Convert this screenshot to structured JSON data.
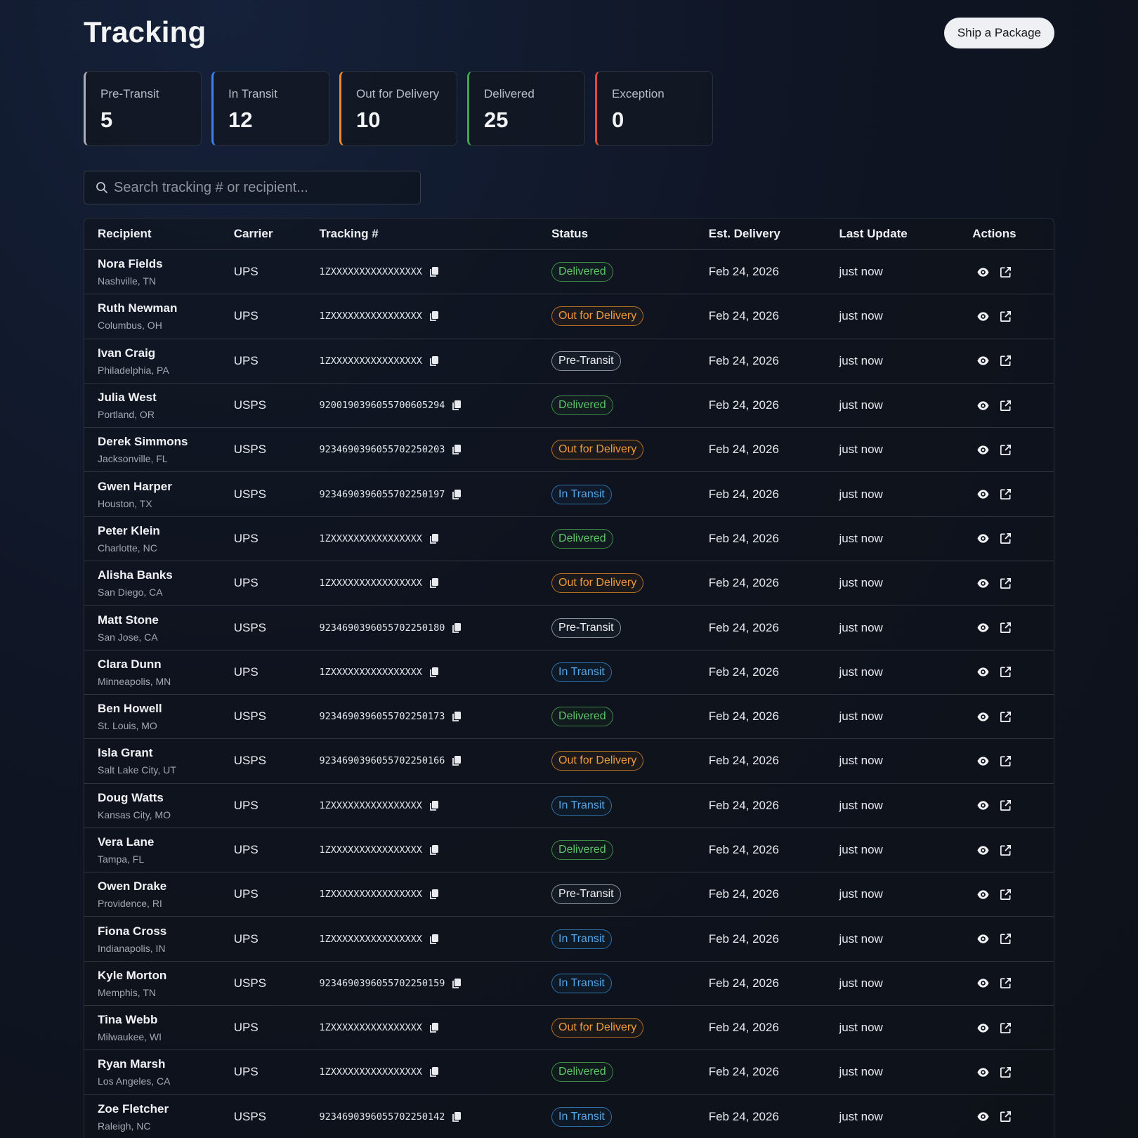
{
  "header": {
    "title": "Tracking",
    "ship_button": "Ship a Package"
  },
  "stats": [
    {
      "label": "Pre-Transit",
      "value": "5",
      "color": "#a8adb6"
    },
    {
      "label": "In Transit",
      "value": "12",
      "color": "#3b82f6"
    },
    {
      "label": "Out for Delivery",
      "value": "10",
      "color": "#f08a2c"
    },
    {
      "label": "Delivered",
      "value": "25",
      "color": "#3fa64a"
    },
    {
      "label": "Exception",
      "value": "0",
      "color": "#e0463c"
    }
  ],
  "search": {
    "placeholder": "Search tracking # or recipient..."
  },
  "table": {
    "columns": [
      "Recipient",
      "Carrier",
      "Tracking #",
      "Status",
      "Est. Delivery",
      "Last Update",
      "Actions"
    ],
    "rows": [
      {
        "name": "Nora Fields",
        "location": "Nashville, TN",
        "carrier": "UPS",
        "tracking": "1ZXXXXXXXXXXXXXXXX",
        "status": "Delivered",
        "eta": "Feb 24, 2026",
        "updated": "just now"
      },
      {
        "name": "Ruth Newman",
        "location": "Columbus, OH",
        "carrier": "UPS",
        "tracking": "1ZXXXXXXXXXXXXXXXX",
        "status": "Out for Delivery",
        "eta": "Feb 24, 2026",
        "updated": "just now"
      },
      {
        "name": "Ivan Craig",
        "location": "Philadelphia, PA",
        "carrier": "UPS",
        "tracking": "1ZXXXXXXXXXXXXXXXX",
        "status": "Pre-Transit",
        "eta": "Feb 24, 2026",
        "updated": "just now"
      },
      {
        "name": "Julia West",
        "location": "Portland, OR",
        "carrier": "USPS",
        "tracking": "9200190396055700605294",
        "status": "Delivered",
        "eta": "Feb 24, 2026",
        "updated": "just now"
      },
      {
        "name": "Derek Simmons",
        "location": "Jacksonville, FL",
        "carrier": "USPS",
        "tracking": "9234690396055702250203",
        "status": "Out for Delivery",
        "eta": "Feb 24, 2026",
        "updated": "just now"
      },
      {
        "name": "Gwen Harper",
        "location": "Houston, TX",
        "carrier": "USPS",
        "tracking": "9234690396055702250197",
        "status": "In Transit",
        "eta": "Feb 24, 2026",
        "updated": "just now"
      },
      {
        "name": "Peter Klein",
        "location": "Charlotte, NC",
        "carrier": "UPS",
        "tracking": "1ZXXXXXXXXXXXXXXXX",
        "status": "Delivered",
        "eta": "Feb 24, 2026",
        "updated": "just now"
      },
      {
        "name": "Alisha Banks",
        "location": "San Diego, CA",
        "carrier": "UPS",
        "tracking": "1ZXXXXXXXXXXXXXXXX",
        "status": "Out for Delivery",
        "eta": "Feb 24, 2026",
        "updated": "just now"
      },
      {
        "name": "Matt Stone",
        "location": "San Jose, CA",
        "carrier": "USPS",
        "tracking": "9234690396055702250180",
        "status": "Pre-Transit",
        "eta": "Feb 24, 2026",
        "updated": "just now"
      },
      {
        "name": "Clara Dunn",
        "location": "Minneapolis, MN",
        "carrier": "UPS",
        "tracking": "1ZXXXXXXXXXXXXXXXX",
        "status": "In Transit",
        "eta": "Feb 24, 2026",
        "updated": "just now"
      },
      {
        "name": "Ben Howell",
        "location": "St. Louis, MO",
        "carrier": "USPS",
        "tracking": "9234690396055702250173",
        "status": "Delivered",
        "eta": "Feb 24, 2026",
        "updated": "just now"
      },
      {
        "name": "Isla Grant",
        "location": "Salt Lake City, UT",
        "carrier": "USPS",
        "tracking": "9234690396055702250166",
        "status": "Out for Delivery",
        "eta": "Feb 24, 2026",
        "updated": "just now"
      },
      {
        "name": "Doug Watts",
        "location": "Kansas City, MO",
        "carrier": "UPS",
        "tracking": "1ZXXXXXXXXXXXXXXXX",
        "status": "In Transit",
        "eta": "Feb 24, 2026",
        "updated": "just now"
      },
      {
        "name": "Vera Lane",
        "location": "Tampa, FL",
        "carrier": "UPS",
        "tracking": "1ZXXXXXXXXXXXXXXXX",
        "status": "Delivered",
        "eta": "Feb 24, 2026",
        "updated": "just now"
      },
      {
        "name": "Owen Drake",
        "location": "Providence, RI",
        "carrier": "UPS",
        "tracking": "1ZXXXXXXXXXXXXXXXX",
        "status": "Pre-Transit",
        "eta": "Feb 24, 2026",
        "updated": "just now"
      },
      {
        "name": "Fiona Cross",
        "location": "Indianapolis, IN",
        "carrier": "UPS",
        "tracking": "1ZXXXXXXXXXXXXXXXX",
        "status": "In Transit",
        "eta": "Feb 24, 2026",
        "updated": "just now"
      },
      {
        "name": "Kyle Morton",
        "location": "Memphis, TN",
        "carrier": "USPS",
        "tracking": "9234690396055702250159",
        "status": "In Transit",
        "eta": "Feb 24, 2026",
        "updated": "just now"
      },
      {
        "name": "Tina Webb",
        "location": "Milwaukee, WI",
        "carrier": "UPS",
        "tracking": "1ZXXXXXXXXXXXXXXXX",
        "status": "Out for Delivery",
        "eta": "Feb 24, 2026",
        "updated": "just now"
      },
      {
        "name": "Ryan Marsh",
        "location": "Los Angeles, CA",
        "carrier": "UPS",
        "tracking": "1ZXXXXXXXXXXXXXXXX",
        "status": "Delivered",
        "eta": "Feb 24, 2026",
        "updated": "just now"
      },
      {
        "name": "Zoe Fletcher",
        "location": "Raleigh, NC",
        "carrier": "USPS",
        "tracking": "9234690396055702250142",
        "status": "In Transit",
        "eta": "Feb 24, 2026",
        "updated": "just now"
      }
    ]
  },
  "icons": {
    "search": "search-icon",
    "copy": "copy-icon",
    "view": "eye-icon",
    "open": "external-link-icon"
  }
}
